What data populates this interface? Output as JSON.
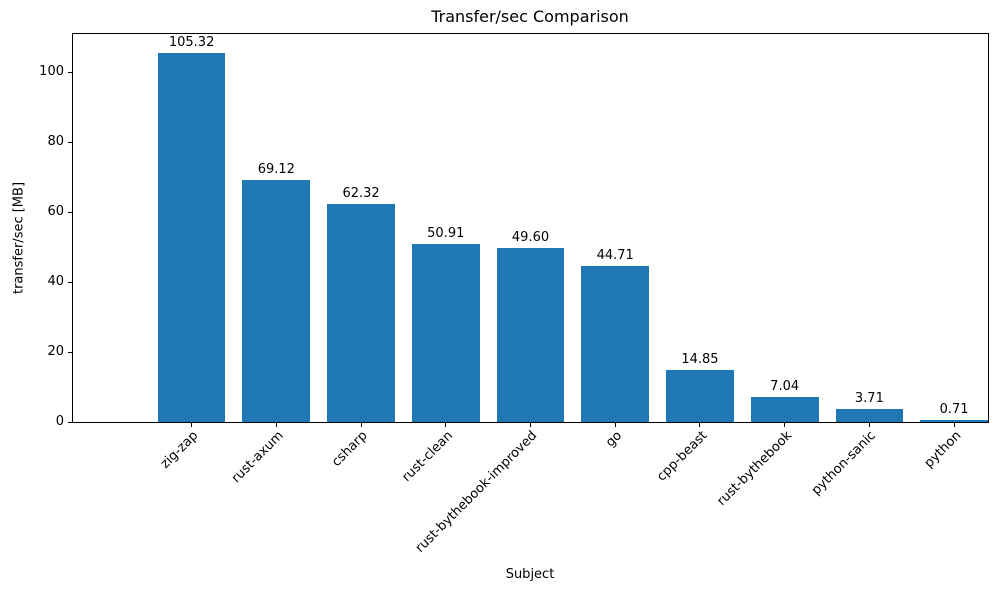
{
  "chart_data": {
    "type": "bar",
    "title": "Transfer/sec Comparison",
    "xlabel": "Subject",
    "ylabel": "transfer/sec [MB]",
    "categories": [
      "zig-zap",
      "rust-axum",
      "csharp",
      "rust-clean",
      "rust-bythebook-improved",
      "go",
      "cpp-beast",
      "rust-bythebook",
      "python-sanic",
      "python"
    ],
    "values": [
      105.32,
      69.12,
      62.32,
      50.91,
      49.6,
      44.71,
      14.85,
      7.04,
      3.71,
      0.71
    ],
    "value_labels": [
      "105.32",
      "69.12",
      "62.32",
      "50.91",
      "49.60",
      "44.71",
      "14.85",
      "7.04",
      "3.71",
      "0.71"
    ],
    "bar_color": "#1f77b4",
    "text_color": "#000000",
    "yticks": [
      0,
      20,
      40,
      60,
      80,
      100
    ],
    "ylim": [
      0,
      110.86
    ],
    "xlim": [
      -0.9,
      9.9
    ],
    "bar_width_units": 0.8,
    "xticklabel_rotation_deg": 45,
    "grid": false,
    "legend": null
  }
}
